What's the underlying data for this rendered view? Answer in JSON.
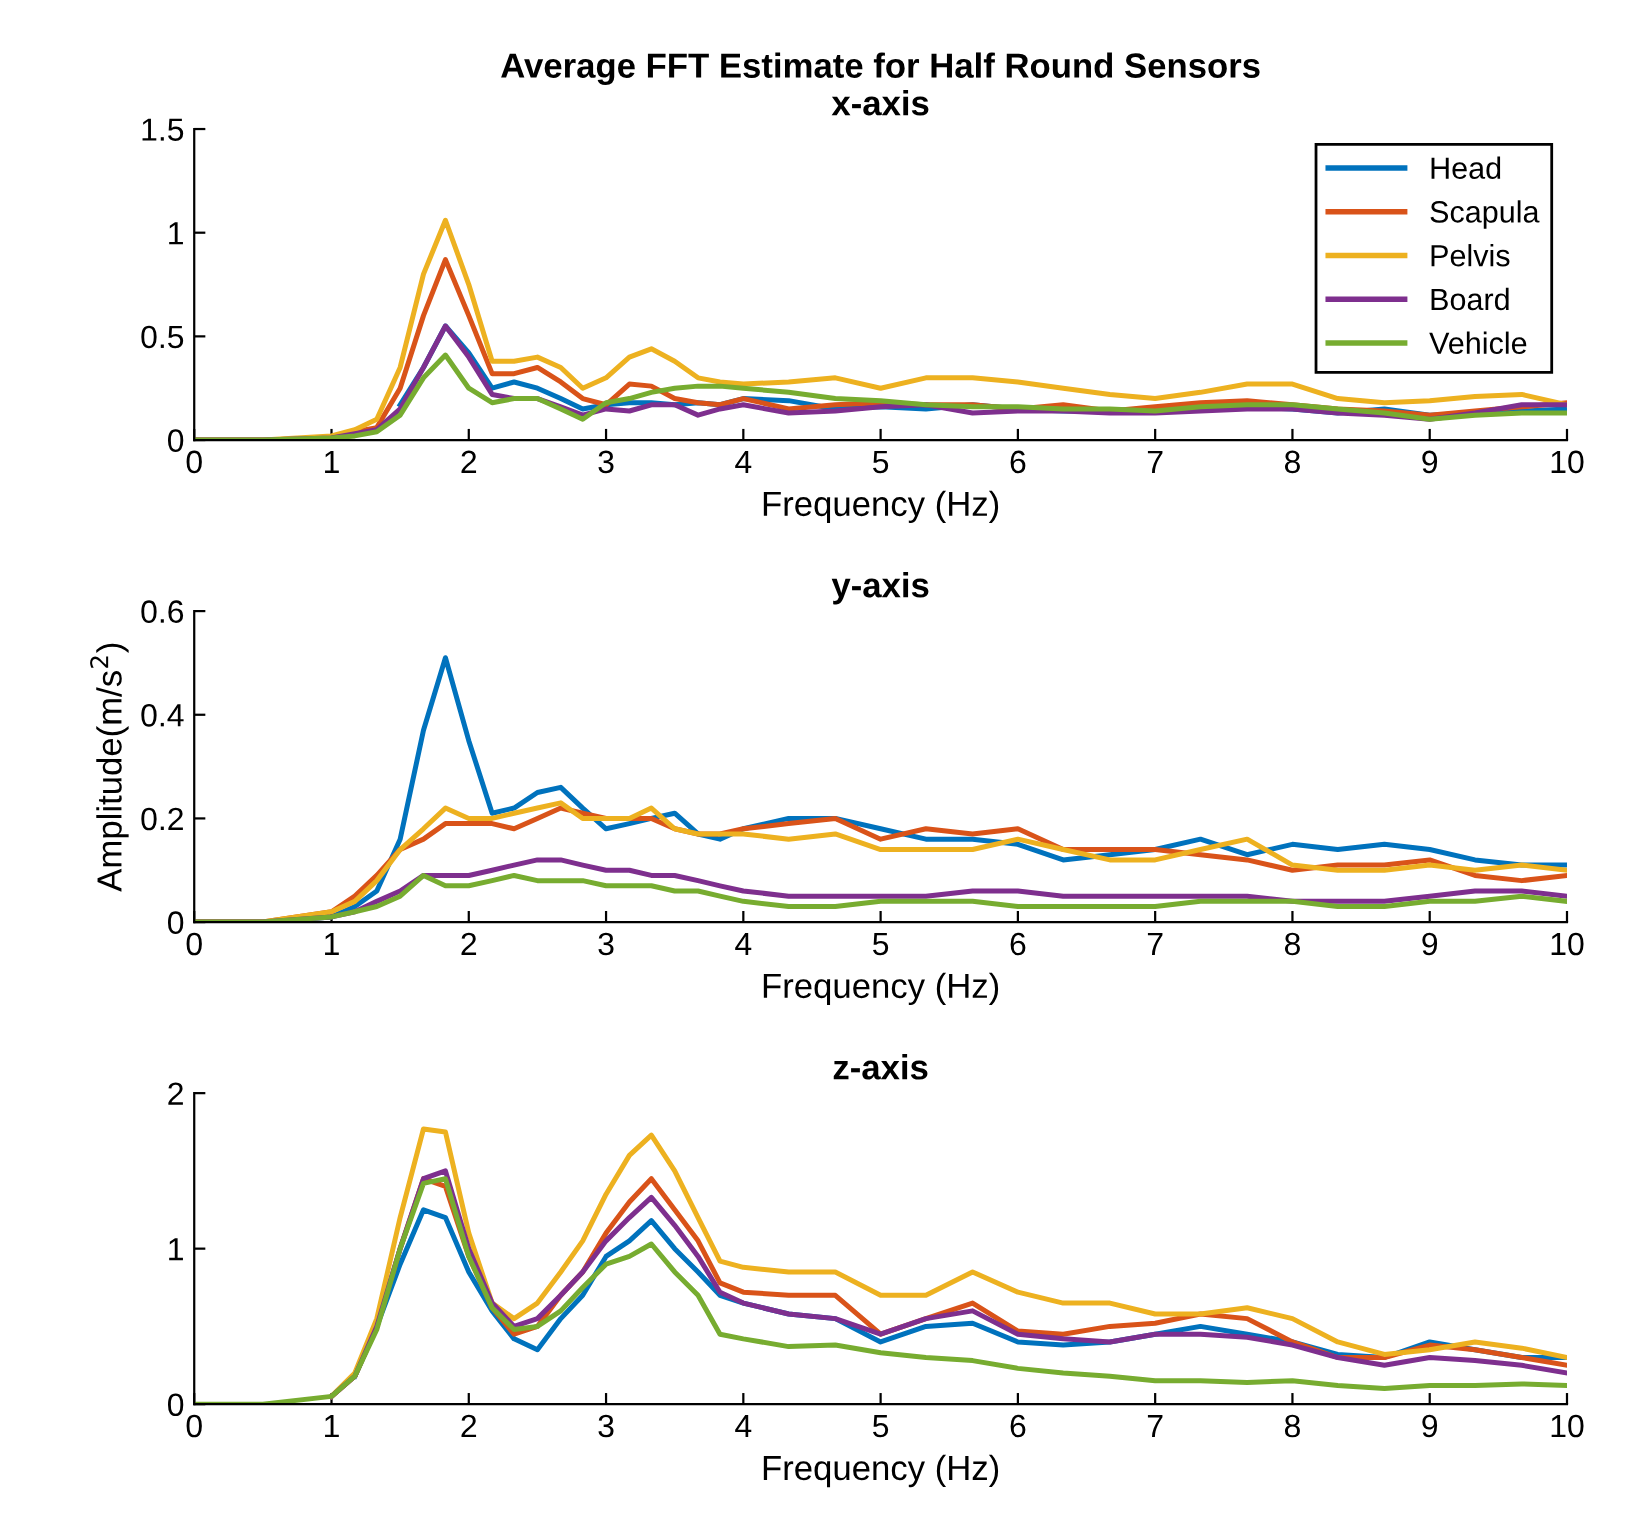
{
  "chart_data": [
    {
      "type": "line",
      "title": "Average FFT Estimate for Half Round Sensors",
      "subtitle": "x-axis",
      "xlabel": "Frequency (Hz)",
      "xlim": [
        0,
        10
      ],
      "xticks": [
        0,
        1,
        2,
        3,
        4,
        5,
        6,
        7,
        8,
        9,
        10
      ],
      "ylim": [
        0,
        1.5
      ],
      "yticks": [
        0,
        0.5,
        1,
        1.5
      ],
      "legend": "top right",
      "x": [
        0,
        0.5,
        1,
        1.17,
        1.33,
        1.5,
        1.67,
        1.83,
        2,
        2.17,
        2.33,
        2.5,
        2.67,
        2.83,
        3,
        3.17,
        3.33,
        3.5,
        3.67,
        3.83,
        4,
        4.33,
        4.67,
        5,
        5.33,
        5.67,
        6,
        6.33,
        6.67,
        7,
        7.33,
        7.67,
        8,
        8.33,
        8.67,
        9,
        9.33,
        9.67,
        10
      ],
      "series": [
        {
          "name": "Head",
          "color": "#0072bd",
          "values": [
            null,
            null,
            null,
            null,
            null,
            0.17,
            0.35,
            0.55,
            0.42,
            0.25,
            0.28,
            0.25,
            0.2,
            0.15,
            0.17,
            0.18,
            0.18,
            0.17,
            0.18,
            0.17,
            0.2,
            0.19,
            0.15,
            0.16,
            0.15,
            0.17,
            0.15,
            0.14,
            0.14,
            0.15,
            0.15,
            0.16,
            0.15,
            0.13,
            0.15,
            0.12,
            0.13,
            0.14,
            0.15
          ]
        },
        {
          "name": "Scapula",
          "color": "#d95319",
          "values": [
            0,
            0,
            0.01,
            0.04,
            0.06,
            0.25,
            0.6,
            0.87,
            0.6,
            0.32,
            0.32,
            0.35,
            0.28,
            0.2,
            0.17,
            0.27,
            0.26,
            0.2,
            0.18,
            0.17,
            0.2,
            0.15,
            0.17,
            0.18,
            0.17,
            0.17,
            0.15,
            0.17,
            0.14,
            0.16,
            0.18,
            0.19,
            0.17,
            0.15,
            0.14,
            0.12,
            0.14,
            0.16,
            0.18
          ]
        },
        {
          "name": "Pelvis",
          "color": "#edb120",
          "values": [
            0,
            0,
            0.02,
            0.05,
            0.1,
            0.35,
            0.8,
            1.06,
            0.75,
            0.38,
            0.38,
            0.4,
            0.35,
            0.25,
            0.3,
            0.4,
            0.44,
            0.38,
            0.3,
            0.28,
            0.27,
            0.28,
            0.3,
            0.25,
            0.3,
            0.3,
            0.28,
            0.25,
            0.22,
            0.2,
            0.23,
            0.27,
            0.27,
            0.2,
            0.18,
            0.19,
            0.21,
            0.22,
            0.17
          ]
        },
        {
          "name": "Board",
          "color": "#7e2f8e",
          "values": [
            0,
            0,
            0.01,
            0.03,
            0.05,
            0.15,
            0.35,
            0.55,
            0.4,
            0.22,
            0.2,
            0.2,
            0.16,
            0.12,
            0.15,
            0.14,
            0.17,
            0.17,
            0.12,
            0.15,
            0.17,
            0.13,
            0.14,
            0.16,
            0.17,
            0.13,
            0.14,
            0.14,
            0.13,
            0.13,
            0.14,
            0.15,
            0.15,
            0.13,
            0.12,
            0.1,
            0.13,
            0.17,
            0.17
          ]
        },
        {
          "name": "Vehicle",
          "color": "#77ac30",
          "values": [
            0,
            0,
            0.01,
            0.02,
            0.04,
            0.12,
            0.3,
            0.41,
            0.25,
            0.18,
            0.2,
            0.2,
            0.15,
            0.1,
            0.18,
            0.2,
            0.23,
            0.25,
            0.26,
            0.26,
            0.25,
            0.23,
            0.2,
            0.19,
            0.17,
            0.16,
            0.16,
            0.15,
            0.15,
            0.14,
            0.16,
            0.17,
            0.17,
            0.15,
            0.13,
            0.1,
            0.12,
            0.13,
            0.13
          ]
        }
      ]
    },
    {
      "type": "line",
      "title": "y-axis",
      "xlabel": "Frequency (Hz)",
      "ylabel": "Amplitude(m/s$^{2}$)",
      "xlim": [
        0,
        10
      ],
      "xticks": [
        0,
        1,
        2,
        3,
        4,
        5,
        6,
        7,
        8,
        9,
        10
      ],
      "ylim": [
        0,
        0.6
      ],
      "yticks": [
        0,
        0.2,
        0.4,
        0.6
      ],
      "x": [
        0,
        0.5,
        1,
        1.17,
        1.33,
        1.5,
        1.67,
        1.83,
        2,
        2.17,
        2.33,
        2.5,
        2.67,
        2.83,
        3,
        3.17,
        3.33,
        3.5,
        3.67,
        3.83,
        4,
        4.33,
        4.67,
        5,
        5.33,
        5.67,
        6,
        6.33,
        6.67,
        7,
        7.33,
        7.67,
        8,
        8.33,
        8.67,
        9,
        9.33,
        9.67,
        10
      ],
      "series": [
        {
          "color": "#0072bd",
          "values": [
            0,
            0,
            0.01,
            0.03,
            0.06,
            0.16,
            0.37,
            0.51,
            0.35,
            0.21,
            0.22,
            0.25,
            0.26,
            0.22,
            0.18,
            0.19,
            0.2,
            0.21,
            0.17,
            0.16,
            0.18,
            0.2,
            0.2,
            0.18,
            0.16,
            0.16,
            0.15,
            0.12,
            0.13,
            0.14,
            0.16,
            0.13,
            0.15,
            0.14,
            0.15,
            0.14,
            0.12,
            0.11,
            0.11
          ]
        },
        {
          "color": "#d95319",
          "values": [
            0,
            0,
            0.02,
            0.05,
            0.09,
            0.14,
            0.16,
            0.19,
            0.19,
            0.19,
            0.18,
            0.2,
            0.22,
            0.21,
            0.2,
            0.2,
            0.2,
            0.18,
            0.17,
            0.17,
            0.18,
            0.19,
            0.2,
            0.16,
            0.18,
            0.17,
            0.18,
            0.14,
            0.14,
            0.14,
            0.13,
            0.12,
            0.1,
            0.11,
            0.11,
            0.12,
            0.09,
            0.08,
            0.09
          ]
        },
        {
          "color": "#edb120",
          "values": [
            0,
            0,
            0.02,
            0.04,
            0.08,
            0.14,
            0.18,
            0.22,
            0.2,
            0.2,
            0.21,
            0.22,
            0.23,
            0.2,
            0.2,
            0.2,
            0.22,
            0.18,
            0.17,
            0.17,
            0.17,
            0.16,
            0.17,
            0.14,
            0.14,
            0.14,
            0.16,
            0.14,
            0.12,
            0.12,
            0.14,
            0.16,
            0.11,
            0.1,
            0.1,
            0.11,
            0.1,
            0.11,
            0.1
          ]
        },
        {
          "color": "#7e2f8e",
          "values": [
            0,
            0,
            0.01,
            0.02,
            0.04,
            0.06,
            0.09,
            0.09,
            0.09,
            0.1,
            0.11,
            0.12,
            0.12,
            0.11,
            0.1,
            0.1,
            0.09,
            0.09,
            0.08,
            0.07,
            0.06,
            0.05,
            0.05,
            0.05,
            0.05,
            0.06,
            0.06,
            0.05,
            0.05,
            0.05,
            0.05,
            0.05,
            0.04,
            0.04,
            0.04,
            0.05,
            0.06,
            0.06,
            0.05
          ]
        },
        {
          "color": "#77ac30",
          "values": [
            0,
            0,
            0.01,
            0.02,
            0.03,
            0.05,
            0.09,
            0.07,
            0.07,
            0.08,
            0.09,
            0.08,
            0.08,
            0.08,
            0.07,
            0.07,
            0.07,
            0.06,
            0.06,
            0.05,
            0.04,
            0.03,
            0.03,
            0.04,
            0.04,
            0.04,
            0.03,
            0.03,
            0.03,
            0.03,
            0.04,
            0.04,
            0.04,
            0.03,
            0.03,
            0.04,
            0.04,
            0.05,
            0.04
          ]
        }
      ]
    },
    {
      "type": "line",
      "title": "z-axis",
      "xlabel": "Frequency (Hz)",
      "xlim": [
        0,
        10
      ],
      "xticks": [
        0,
        1,
        2,
        3,
        4,
        5,
        6,
        7,
        8,
        9,
        10
      ],
      "ylim": [
        0,
        2
      ],
      "yticks": [
        0,
        1,
        2
      ],
      "x": [
        0,
        0.5,
        1,
        1.17,
        1.33,
        1.5,
        1.67,
        1.83,
        2,
        2.17,
        2.33,
        2.5,
        2.67,
        2.83,
        3,
        3.17,
        3.33,
        3.5,
        3.67,
        3.83,
        4,
        4.33,
        4.67,
        5,
        5.33,
        5.67,
        6,
        6.33,
        6.67,
        7,
        7.33,
        7.67,
        8,
        8.33,
        8.67,
        9,
        9.33,
        9.67,
        10
      ],
      "series": [
        {
          "color": "#0072bd",
          "values": [
            null,
            null,
            null,
            0.18,
            0.5,
            0.9,
            1.25,
            1.2,
            0.85,
            0.6,
            0.42,
            0.35,
            0.55,
            0.7,
            0.95,
            1.05,
            1.18,
            1.0,
            0.85,
            0.7,
            0.65,
            0.58,
            0.55,
            0.4,
            0.5,
            0.52,
            0.4,
            0.38,
            0.4,
            0.45,
            0.5,
            0.45,
            0.4,
            0.32,
            0.3,
            0.4,
            0.35,
            0.3,
            0.3
          ]
        },
        {
          "color": "#d95319",
          "values": [
            null,
            null,
            0.05,
            0.18,
            0.5,
            1.0,
            1.45,
            1.4,
            0.95,
            0.62,
            0.45,
            0.5,
            0.7,
            0.85,
            1.1,
            1.3,
            1.45,
            1.25,
            1.05,
            0.78,
            0.72,
            0.7,
            0.7,
            0.45,
            0.55,
            0.65,
            0.47,
            0.45,
            0.5,
            0.52,
            0.58,
            0.55,
            0.4,
            0.3,
            0.3,
            0.38,
            0.35,
            0.3,
            0.25
          ]
        },
        {
          "color": "#edb120",
          "values": [
            null,
            null,
            0.05,
            0.2,
            0.55,
            1.2,
            1.77,
            1.75,
            1.1,
            0.65,
            0.55,
            0.65,
            0.85,
            1.05,
            1.35,
            1.6,
            1.73,
            1.5,
            1.2,
            0.92,
            0.88,
            0.85,
            0.85,
            0.7,
            0.7,
            0.85,
            0.72,
            0.65,
            0.65,
            0.58,
            0.58,
            0.62,
            0.55,
            0.4,
            0.32,
            0.35,
            0.4,
            0.36,
            0.3
          ]
        },
        {
          "color": "#7e2f8e",
          "values": [
            null,
            null,
            0.05,
            0.18,
            0.5,
            1.0,
            1.45,
            1.5,
            1.0,
            0.65,
            0.5,
            0.55,
            0.7,
            0.85,
            1.05,
            1.2,
            1.33,
            1.15,
            0.95,
            0.72,
            0.65,
            0.58,
            0.55,
            0.45,
            0.55,
            0.6,
            0.45,
            0.42,
            0.4,
            0.45,
            0.45,
            0.43,
            0.38,
            0.3,
            0.25,
            0.3,
            0.28,
            0.25,
            0.2
          ]
        },
        {
          "color": "#77ac30",
          "values": [
            0,
            0,
            0.05,
            0.18,
            0.48,
            1.0,
            1.42,
            1.45,
            0.95,
            0.62,
            0.48,
            0.5,
            0.6,
            0.75,
            0.9,
            0.95,
            1.03,
            0.85,
            0.7,
            0.45,
            0.42,
            0.37,
            0.38,
            0.33,
            0.3,
            0.28,
            0.23,
            0.2,
            0.18,
            0.15,
            0.15,
            0.14,
            0.15,
            0.12,
            0.1,
            0.12,
            0.12,
            0.13,
            0.12
          ]
        }
      ]
    }
  ]
}
